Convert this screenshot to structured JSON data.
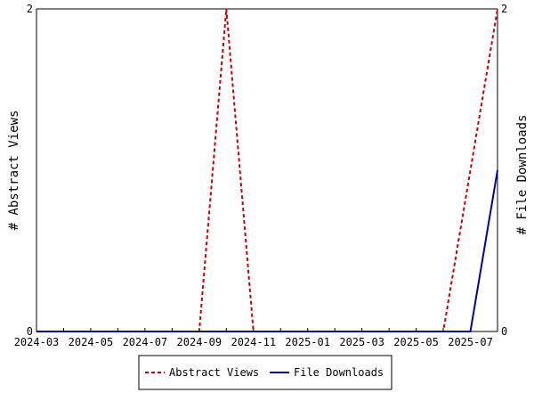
{
  "chart_data": {
    "type": "line",
    "x": [
      "2024-03",
      "2024-04",
      "2024-05",
      "2024-06",
      "2024-07",
      "2024-08",
      "2024-09",
      "2024-10",
      "2024-11",
      "2024-12",
      "2025-01",
      "2025-02",
      "2025-03",
      "2025-04",
      "2025-05",
      "2025-06",
      "2025-07",
      "2025-08"
    ],
    "x_tick_labels": [
      "2024-03",
      "2024-05",
      "2024-07",
      "2024-09",
      "2024-11",
      "2025-01",
      "2025-03",
      "2025-05",
      "2025-07"
    ],
    "ylabel": "# Abstract Views",
    "y2label": "# File Downloads",
    "ylim": [
      0,
      2
    ],
    "y2lim": [
      0,
      2
    ],
    "y_ticks": [
      "0",
      "2"
    ],
    "y2_ticks": [
      "0",
      "2"
    ],
    "grid": false,
    "legend_position": "bottom-center",
    "series": [
      {
        "name": "Abstract Views",
        "axis": "left",
        "style": "dashed",
        "color": "#cc0000",
        "values": [
          0,
          0,
          0,
          0,
          0,
          0,
          0,
          2,
          0,
          0,
          0,
          0,
          0,
          0,
          0,
          0,
          1,
          2
        ]
      },
      {
        "name": "File Downloads",
        "axis": "right",
        "style": "solid",
        "color": "#0000aa",
        "values": [
          0,
          0,
          0,
          0,
          0,
          0,
          0,
          0,
          0,
          0,
          0,
          0,
          0,
          0,
          0,
          0,
          0,
          1
        ]
      }
    ]
  }
}
